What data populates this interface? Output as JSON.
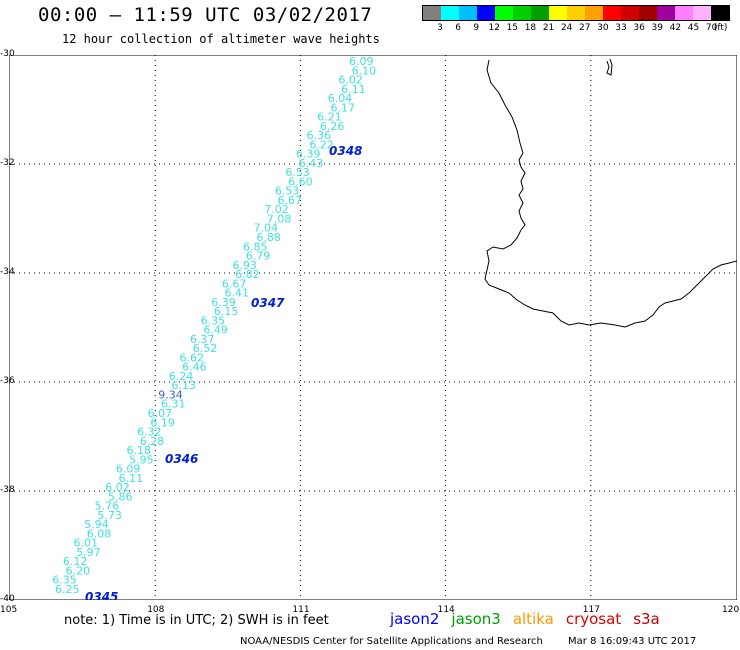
{
  "header": {
    "title": "00:00 – 11:59 UTC 03/02/2017",
    "subtitle": "12 hour collection of altimeter wave heights"
  },
  "legend": {
    "unit": "(ft)",
    "colors": [
      "#808080",
      "#00ffff",
      "#00bfff",
      "#0000ff",
      "#00ff00",
      "#00d000",
      "#00a000",
      "#ffff00",
      "#ffd000",
      "#ffa000",
      "#ff0000",
      "#d00000",
      "#a00000",
      "#a000a0",
      "#ff80ff",
      "#ffb0ff",
      "#000000"
    ],
    "labels": [
      "3",
      "6",
      "9",
      "12",
      "15",
      "18",
      "21",
      "24",
      "27",
      "30",
      "33",
      "36",
      "39",
      "42",
      "45",
      "70"
    ]
  },
  "axes": {
    "lat_labels": [
      "-30",
      "-32",
      "-34",
      "-36",
      "-38",
      "-40"
    ],
    "lon_labels": [
      "105",
      "108",
      "111",
      "114",
      "117",
      "120"
    ]
  },
  "track": {
    "color": "#40e0e0",
    "highlight_color": "#4060c0",
    "time_color": "#0020d0",
    "wave_labels": [
      "6.09",
      "6.10",
      "6.02",
      "6.11",
      "6.04",
      "6.17",
      "6.21",
      "6.26",
      "6.36",
      "6.22",
      "6.39",
      "6.43",
      "6.53",
      "6.60",
      "6.53",
      "6.67",
      "7.02",
      "7.08",
      "7.04",
      "6.88",
      "6.85",
      "6.79",
      "6.93",
      "6.82",
      "6.67",
      "6.41",
      "6.39",
      "6.15",
      "6.35",
      "6.49",
      "6.37",
      "6.52",
      "6.62",
      "6.46",
      "6.24",
      "6.13",
      "9.34",
      "6.31",
      "6.07",
      "6.19",
      "6.32",
      "6.28",
      "6.18",
      "5.95",
      "6.09",
      "6.11",
      "6.02",
      "5.86",
      "5.76",
      "5.73",
      "5.94",
      "6.08",
      "6.01",
      "5.97",
      "6.12",
      "6.20",
      "6.35",
      "6.25"
    ],
    "highlight_label": "9.34",
    "time_labels": [
      "0348",
      "0347",
      "0346",
      "0345"
    ]
  },
  "note": "note: 1) Time is in UTC; 2) SWH is in feet",
  "satellites": [
    {
      "name": "jason2",
      "color": "#0000ff"
    },
    {
      "name": "jason3",
      "color": "#00a000"
    },
    {
      "name": "altika",
      "color": "#ff9900"
    },
    {
      "name": "cryosat",
      "color": "#e00000"
    },
    {
      "name": "s3a",
      "color": "#c00000"
    }
  ],
  "footer": {
    "credit": "NOAA/NESDIS Center for Satellite Applications and Research",
    "timestamp": "Mar  8 16:09:43 UTC 2017"
  }
}
